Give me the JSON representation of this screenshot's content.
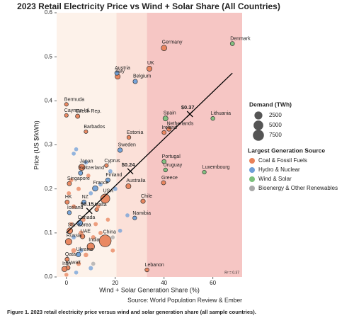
{
  "chart_data": {
    "type": "scatter",
    "title": "2023 Retail Electricity Price vs Wind + Solar Share (All Countries)",
    "x_label": "Wind + Solar Generation Share (%)",
    "y_label": "Price (US $/kWh)",
    "source": "Source: World Population Review & Ember",
    "caption": "Figure 1. 2023 retail electricity price versus wind and solar generation share (all sample countries).",
    "r_squared": "R² = 0.37",
    "xlim": [
      -4,
      72
    ],
    "ylim": [
      0,
      0.6
    ],
    "xticks": [
      0,
      20,
      40,
      60
    ],
    "yticks": [
      {
        "value": 0,
        "label": "0.0"
      },
      0.1,
      0.2,
      0.3,
      0.4,
      0.5,
      0.6
    ],
    "regions": [
      {
        "x": [
          -4,
          20.5
        ],
        "color": "#fdf2ea"
      },
      {
        "x": [
          20.5,
          33
        ],
        "color": "#fbe0d8"
      },
      {
        "x": [
          33,
          72
        ],
        "color": "#f6c6c4"
      }
    ],
    "trend": {
      "x": [
        0,
        68
      ],
      "y": [
        0.1,
        0.463
      ],
      "color": "#000000",
      "markers": {
        "x": [
          9.4,
          26.2,
          50.6
        ],
        "y": [
          0.15,
          0.24,
          0.37
        ],
        "value_labels": [
          "$0.15",
          "$0.24",
          "$0.37"
        ]
      }
    },
    "size_legend": {
      "title": "Demand (TWh)",
      "values": [
        2500,
        5000,
        7500
      ]
    },
    "legend_title": "Largest Generation Source",
    "series": [
      {
        "name": "Coal & Fossil Fuels",
        "color": "#e8825a",
        "labels": [
          "Germany",
          "UK",
          "Italy",
          "Bermuda",
          "Cayman Isl.",
          "Czech Rep.",
          "Barbados",
          "Netherlands",
          "Ireland",
          "Estonia",
          "Greece",
          "Cyprus",
          "Japan",
          "Singapore",
          "Australia",
          "USA",
          "HK",
          "Chile",
          "Malta",
          "Sth. Korea",
          "UAE",
          "China",
          "Russia",
          "India",
          "Qatar",
          "Kuwait",
          "Iran",
          "Lebanon",
          null,
          null,
          null,
          null,
          null,
          null,
          null,
          null,
          null,
          null,
          null,
          null,
          null,
          null,
          null,
          null,
          null,
          null
        ],
        "x": [
          40,
          34,
          21,
          0,
          0,
          4.6,
          8,
          42,
          40,
          25.6,
          39.8,
          16.4,
          6.3,
          1.2,
          25.4,
          15.9,
          0.3,
          31.4,
          12.4,
          1.4,
          6.6,
          15.9,
          0.9,
          10,
          0.3,
          0.6,
          -0.8,
          33,
          2,
          5,
          9,
          1,
          3,
          7,
          12,
          3,
          8,
          2,
          14,
          17,
          0,
          5,
          11,
          6,
          19,
          13
        ],
        "y": [
          0.52,
          0.473,
          0.455,
          0.392,
          0.367,
          0.365,
          0.33,
          0.336,
          0.328,
          0.317,
          0.214,
          0.253,
          0.249,
          0.212,
          0.206,
          0.178,
          0.17,
          0.172,
          0.153,
          0.105,
          0.092,
          0.082,
          0.08,
          0.069,
          0.04,
          0.021,
          0.018,
          0.016,
          0.22,
          0.2,
          0.23,
          0.19,
          0.16,
          0.13,
          0.12,
          0.06,
          0.05,
          0.12,
          0.1,
          0.13,
          0.005,
          0.03,
          0.09,
          0.1,
          0.06,
          0.16
        ],
        "size": [
          500,
          300,
          300,
          1,
          1,
          65,
          1,
          115,
          33,
          8,
          55,
          5,
          950,
          55,
          270,
          4200,
          45,
          85,
          3,
          600,
          150,
          9400,
          1150,
          1950,
          50,
          75,
          360,
          15,
          20,
          40,
          15,
          30,
          60,
          25,
          35,
          200,
          120,
          20,
          45,
          15,
          10,
          90,
          50,
          150,
          30,
          20
        ]
      },
      {
        "name": "Hydro & Nuclear",
        "color": "#6f9fd8",
        "labels": [
          "Austria",
          "Belgium",
          "Sweden",
          "Switzerland",
          "Finland",
          "France",
          "NZ",
          "Iceland",
          "Canada",
          "Namibia",
          "Ukraine",
          null,
          null,
          null,
          null,
          null,
          null,
          null,
          null,
          null,
          null,
          null,
          null,
          null
        ],
        "x": [
          20.7,
          28.2,
          22,
          5.8,
          17,
          11.8,
          7.2,
          1.2,
          5.5,
          28,
          4.9,
          4,
          3,
          8,
          10,
          14,
          18,
          20,
          25,
          22,
          3,
          6,
          4,
          10
        ],
        "y": [
          0.463,
          0.444,
          0.288,
          0.236,
          0.22,
          0.201,
          0.17,
          0.146,
          0.122,
          0.134,
          0.051,
          0.29,
          0.28,
          0.26,
          0.19,
          0.21,
          0.24,
          0.2,
          0.14,
          0.105,
          0.09,
          0.06,
          0.01,
          0.02
        ],
        "size": [
          70,
          85,
          135,
          60,
          85,
          450,
          43,
          19,
          580,
          5,
          120,
          10,
          15,
          40,
          25,
          20,
          30,
          60,
          15,
          20,
          30,
          80,
          10,
          50
        ]
      },
      {
        "name": "Wind & Solar",
        "color": "#7cc07c",
        "labels": [
          "Denmark",
          "Spain",
          "Lithuania",
          "Portugal",
          "Uruguay",
          "Luxembourg"
        ],
        "x": [
          68,
          40.6,
          60,
          40,
          40.6,
          56.5
        ],
        "y": [
          0.53,
          0.36,
          0.36,
          0.262,
          0.243,
          0.238
        ],
        "size": [
          35,
          250,
          12,
          50,
          12,
          6
        ]
      },
      {
        "name": "Bioenergy & Other Renewables",
        "color": "#a8a8a8",
        "labels": [
          null,
          null
        ],
        "x": [
          11,
          19
        ],
        "y": [
          0.03,
          0.09
        ],
        "size": [
          20,
          10
        ]
      }
    ]
  }
}
